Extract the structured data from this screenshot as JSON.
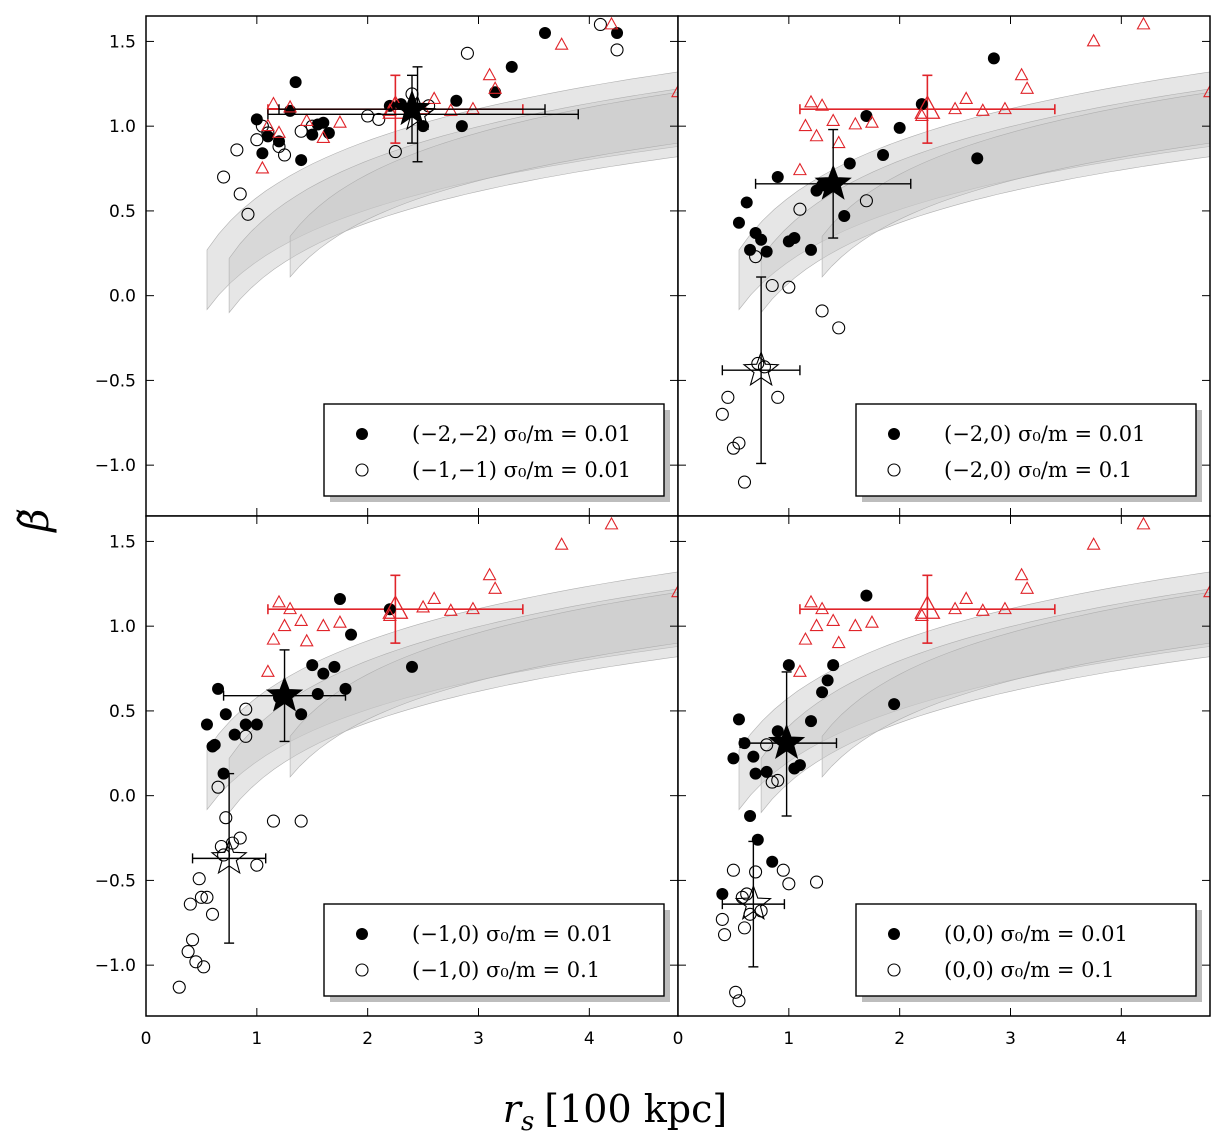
{
  "figure": {
    "ylabel": "β̃",
    "ylabel_tilde": "~",
    "xlabel_symbol": "r",
    "xlabel_sub": "s",
    "xlabel_unit": "[100 kpc]"
  },
  "axes": {
    "xlim": [
      0,
      4.8
    ],
    "ylim": [
      -1.3,
      1.65
    ],
    "x_ticks": [
      0,
      1,
      2,
      3,
      4
    ],
    "y_ticks": [
      1.5,
      1.0,
      0.5,
      0.0,
      -0.5,
      -1.0
    ],
    "x_tick_labels": [
      "0",
      "1",
      "2",
      "3",
      "4"
    ],
    "y_tick_labels": [
      "1.5",
      "1.0",
      "0.5",
      "0.0",
      "−0.5",
      "−1.0"
    ]
  },
  "chart_data": [
    {
      "type": "scatter",
      "panel": "top-left",
      "legend_placement": "bottom-right",
      "series": [
        {
          "name": "(−2,−2) σ0/m = 0.01",
          "label": "(−2,−2) σ₀/m = 0.01",
          "marker": "filled-circle",
          "x": [
            1.0,
            1.05,
            1.1,
            1.2,
            1.3,
            1.35,
            1.4,
            1.5,
            1.55,
            1.6,
            1.65,
            2.2,
            2.3,
            2.5,
            2.8,
            2.85,
            3.15,
            3.3,
            3.6,
            4.25
          ],
          "y": [
            1.04,
            0.84,
            0.94,
            0.91,
            1.09,
            1.26,
            0.8,
            0.95,
            1.01,
            1.02,
            0.96,
            1.12,
            1.13,
            1.0,
            1.15,
            1.0,
            1.2,
            1.35,
            1.55,
            1.55
          ]
        },
        {
          "name": "(−1,−1) σ0/m = 0.01",
          "label": "(−1,−1) σ₀/m = 0.01",
          "marker": "open-circle",
          "x": [
            0.7,
            0.82,
            0.85,
            0.92,
            1.0,
            1.05,
            1.1,
            1.2,
            1.25,
            1.4,
            1.5,
            2.0,
            2.1,
            2.25,
            2.4,
            2.55,
            2.9,
            4.1,
            4.25
          ],
          "y": [
            0.7,
            0.86,
            0.6,
            0.48,
            0.92,
            1.0,
            0.96,
            0.88,
            0.83,
            0.97,
            1.0,
            1.06,
            1.04,
            0.85,
            1.19,
            1.12,
            1.43,
            1.6,
            1.45
          ]
        },
        {
          "name": "Triangles",
          "marker": "open-triangle",
          "x": [
            1.05,
            1.1,
            1.15,
            1.2,
            1.3,
            1.45,
            1.6,
            1.75,
            2.2,
            2.5,
            2.6,
            2.75,
            2.95,
            3.1,
            3.15,
            3.75,
            4.2,
            4.8
          ],
          "y": [
            0.75,
            1.0,
            1.13,
            0.96,
            1.11,
            1.03,
            0.93,
            1.02,
            1.09,
            1.1,
            1.16,
            1.09,
            1.1,
            1.3,
            1.22,
            1.48,
            1.6,
            1.2
          ]
        }
      ],
      "stars": [
        {
          "x": 2.4,
          "y": 1.1,
          "xerr": 1.2,
          "yerr": 0.2,
          "style": "filled"
        },
        {
          "x": 2.45,
          "y": 1.07,
          "xerr": [
            1.35,
            1.45
          ],
          "yerr": 0.28,
          "style": "open"
        }
      ],
      "red_errorbar": {
        "x": 2.25,
        "y": 1.1,
        "xerr": [
          1.15,
          1.15
        ],
        "yerr": 0.2
      }
    },
    {
      "type": "scatter",
      "panel": "top-right",
      "legend_placement": "bottom-right",
      "series": [
        {
          "name": "(−2,0) σ0/m = 0.01",
          "label": "(−2,0) σ₀/m = 0.01",
          "marker": "filled-circle",
          "x": [
            0.55,
            0.62,
            0.65,
            0.7,
            0.75,
            0.8,
            0.9,
            1.0,
            1.05,
            1.2,
            1.25,
            1.3,
            1.5,
            1.55,
            1.7,
            1.85,
            2.0,
            2.2,
            2.7,
            2.85
          ],
          "y": [
            0.43,
            0.55,
            0.27,
            0.37,
            0.33,
            0.26,
            0.7,
            0.32,
            0.34,
            0.27,
            0.62,
            0.65,
            0.47,
            0.78,
            1.06,
            0.83,
            0.99,
            1.13,
            0.81,
            1.4
          ]
        },
        {
          "name": "(−2,0) σ0/m = 0.1",
          "label": "(−2,0) σ₀/m = 0.1",
          "marker": "open-circle",
          "x": [
            0.4,
            0.45,
            0.5,
            0.55,
            0.6,
            0.7,
            0.72,
            0.78,
            0.85,
            0.9,
            1.0,
            1.1,
            1.3,
            1.45,
            1.7
          ],
          "y": [
            -0.7,
            -0.6,
            -0.9,
            -0.87,
            -1.1,
            0.23,
            -0.4,
            -0.42,
            0.06,
            -0.6,
            0.05,
            0.51,
            -0.09,
            -0.19,
            0.56
          ]
        },
        {
          "name": "Triangles",
          "marker": "open-triangle",
          "x": [
            1.1,
            1.15,
            1.2,
            1.25,
            1.3,
            1.4,
            1.45,
            1.6,
            1.75,
            2.2,
            2.5,
            2.6,
            2.75,
            2.95,
            3.1,
            3.15,
            3.75,
            4.2,
            4.8
          ],
          "y": [
            0.74,
            1.0,
            1.14,
            0.94,
            1.12,
            1.03,
            0.9,
            1.01,
            1.02,
            1.06,
            1.1,
            1.16,
            1.09,
            1.1,
            1.3,
            1.22,
            1.5,
            1.6,
            1.2
          ]
        }
      ],
      "stars": [
        {
          "x": 1.4,
          "y": 0.66,
          "xerr": 0.7,
          "yerr": 0.32,
          "style": "filled"
        },
        {
          "x": 0.75,
          "y": -0.44,
          "xerr": [
            0.35,
            0.35
          ],
          "yerr": [
            0.55,
            0.55
          ],
          "style": "open"
        }
      ],
      "red_errorbar": {
        "x": 2.25,
        "y": 1.1,
        "xerr": [
          1.15,
          1.15
        ],
        "yerr": 0.2
      }
    },
    {
      "type": "scatter",
      "panel": "bottom-left",
      "legend_placement": "bottom-right",
      "series": [
        {
          "name": "(−1,0) σ0/m = 0.01",
          "label": "(−1,0) σ₀/m = 0.01",
          "marker": "filled-circle",
          "x": [
            0.55,
            0.6,
            0.62,
            0.65,
            0.7,
            0.72,
            0.8,
            0.9,
            1.0,
            1.2,
            1.4,
            1.5,
            1.55,
            1.6,
            1.7,
            1.75,
            1.8,
            1.85,
            2.2,
            2.4
          ],
          "y": [
            0.42,
            0.29,
            0.3,
            0.63,
            0.13,
            0.48,
            0.36,
            0.42,
            0.42,
            0.58,
            0.48,
            0.77,
            0.6,
            0.72,
            0.76,
            1.16,
            0.63,
            0.95,
            1.1,
            0.76
          ]
        },
        {
          "name": "(−1,0) σ0/m = 0.1",
          "label": "(−1,0) σ₀/m = 0.1",
          "marker": "open-circle",
          "x": [
            0.3,
            0.38,
            0.4,
            0.42,
            0.45,
            0.48,
            0.5,
            0.52,
            0.55,
            0.6,
            0.65,
            0.68,
            0.7,
            0.72,
            0.78,
            0.85,
            0.9,
            0.9,
            1.0,
            1.15,
            1.4
          ],
          "y": [
            -1.13,
            -0.92,
            -0.64,
            -0.85,
            -0.98,
            -0.49,
            -0.6,
            -1.01,
            -0.6,
            -0.7,
            0.05,
            -0.3,
            -0.35,
            -0.13,
            -0.28,
            -0.25,
            0.51,
            0.35,
            -0.41,
            -0.15,
            -0.15
          ]
        },
        {
          "name": "Triangles",
          "marker": "open-triangle",
          "x": [
            1.1,
            1.15,
            1.2,
            1.25,
            1.3,
            1.4,
            1.45,
            1.6,
            1.75,
            2.2,
            2.5,
            2.6,
            2.75,
            2.95,
            3.1,
            3.15,
            3.75,
            4.2,
            4.8
          ],
          "y": [
            0.73,
            0.92,
            1.14,
            1.0,
            1.1,
            1.03,
            0.91,
            1.0,
            1.02,
            1.06,
            1.11,
            1.16,
            1.09,
            1.1,
            1.3,
            1.22,
            1.48,
            1.6,
            1.2
          ]
        }
      ],
      "stars": [
        {
          "x": 1.25,
          "y": 0.59,
          "xerr": 0.55,
          "yerr": 0.27,
          "style": "filled"
        },
        {
          "x": 0.75,
          "y": -0.37,
          "xerr": 0.33,
          "yerr": 0.5,
          "style": "open"
        }
      ],
      "red_errorbar": {
        "x": 2.25,
        "y": 1.1,
        "xerr": [
          1.15,
          1.15
        ],
        "yerr": 0.2
      }
    },
    {
      "type": "scatter",
      "panel": "bottom-right",
      "legend_placement": "bottom-right",
      "series": [
        {
          "name": "(0,0) σ0/m = 0.01",
          "label": "(0,0) σ₀/m = 0.01",
          "marker": "filled-circle",
          "x": [
            0.4,
            0.5,
            0.55,
            0.6,
            0.65,
            0.68,
            0.7,
            0.72,
            0.8,
            0.85,
            0.9,
            1.0,
            1.05,
            1.1,
            1.2,
            1.3,
            1.35,
            1.4,
            1.7,
            1.95
          ],
          "y": [
            -0.58,
            0.22,
            0.45,
            0.31,
            -0.12,
            0.23,
            0.13,
            -0.26,
            0.14,
            -0.39,
            0.38,
            0.77,
            0.16,
            0.18,
            0.44,
            0.61,
            0.68,
            0.77,
            1.18,
            0.54
          ]
        },
        {
          "name": "(0,0) σ0/m = 0.1",
          "label": "(0,0) σ₀/m = 0.1",
          "marker": "open-circle",
          "x": [
            0.4,
            0.42,
            0.5,
            0.52,
            0.55,
            0.58,
            0.6,
            0.62,
            0.65,
            0.7,
            0.75,
            0.8,
            0.85,
            0.9,
            0.95,
            1.0,
            1.25
          ],
          "y": [
            -0.73,
            -0.82,
            -0.44,
            -1.16,
            -1.21,
            -0.6,
            -0.78,
            -0.58,
            -0.7,
            -0.45,
            -0.68,
            0.3,
            0.08,
            0.09,
            -0.44,
            -0.52,
            -0.51
          ]
        },
        {
          "name": "Triangles",
          "marker": "open-triangle",
          "x": [
            1.1,
            1.15,
            1.2,
            1.25,
            1.3,
            1.4,
            1.45,
            1.6,
            1.75,
            2.2,
            2.5,
            2.6,
            2.75,
            2.95,
            3.1,
            3.15,
            3.75,
            4.2,
            4.8
          ],
          "y": [
            0.73,
            0.92,
            1.14,
            1.0,
            1.1,
            1.03,
            0.9,
            1.0,
            1.02,
            1.06,
            1.1,
            1.16,
            1.09,
            1.1,
            1.3,
            1.22,
            1.48,
            1.6,
            1.2
          ]
        }
      ],
      "stars": [
        {
          "x": 0.98,
          "y": 0.31,
          "xerr": [
            0.42,
            0.45
          ],
          "yerr": [
            0.43,
            0.42
          ],
          "style": "filled"
        },
        {
          "x": 0.68,
          "y": -0.64,
          "xerr": 0.28,
          "yerr": 0.37,
          "style": "open"
        }
      ],
      "red_errorbar": {
        "x": 2.25,
        "y": 1.1,
        "xerr": [
          1.15,
          1.15
        ],
        "yerr": 0.2
      }
    }
  ]
}
